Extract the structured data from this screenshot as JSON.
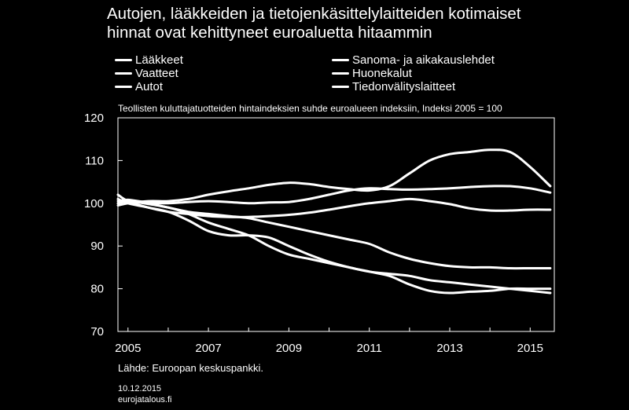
{
  "title_line1": "Autojen, lääkkeiden ja tietojenkäsittelylaitteiden kotimaiset",
  "title_line2": "hinnat ovat kehittyneet euroaluetta hitaammin",
  "subtitle": "Teollisten kuluttajatuotteiden hintaindeksien suhde euroalueen indeksiin, Indeksi 2005 = 100",
  "source": "Lähde: Euroopan keskuspankki.",
  "date": "10.12.2015",
  "site": "eurojatalous.fi",
  "colors": {
    "background": "#000000",
    "foreground": "#ffffff"
  },
  "chart_data": {
    "type": "line",
    "title": "Autojen, lääkkeiden ja tietojenkäsittelylaitteiden kotimaiset hinnat ovat kehittyneet euroaluetta hitaammin",
    "subtitle": "Teollisten kuluttajatuotteiden hintaindeksien suhde euroalueen indeksiin, Indeksi 2005 = 100",
    "xlabel": "",
    "ylabel": "",
    "xlim": [
      2004.75,
      2015.6
    ],
    "ylim": [
      70,
      120
    ],
    "yticks": [
      70,
      80,
      90,
      100,
      110,
      120
    ],
    "xticks": [
      2005,
      2007,
      2009,
      2011,
      2013,
      2015
    ],
    "xtick_labels": [
      "2005",
      "2007",
      "2009",
      "2011",
      "2013",
      "2015"
    ],
    "grid": false,
    "legend_position": "top",
    "series": [
      {
        "name": "Lääkkeet",
        "x": [
          2004.75,
          2005,
          2006,
          2006.5,
          2007,
          2007.5,
          2008,
          2008.5,
          2009,
          2009.5,
          2010,
          2010.5,
          2011,
          2011.5,
          2012,
          2012.5,
          2013,
          2013.5,
          2014,
          2014.5,
          2015,
          2015.5
        ],
        "y": [
          100,
          100.5,
          99.0,
          97.5,
          95.5,
          94.0,
          92.5,
          90.0,
          88.0,
          87.0,
          86.0,
          85.0,
          84.0,
          83.5,
          83.0,
          82.0,
          81.5,
          81.0,
          80.5,
          80.0,
          79.5,
          79.0
        ]
      },
      {
        "name": "Vaatteet",
        "x": [
          2004.75,
          2005,
          2005.5,
          2006,
          2006.5,
          2007,
          2007.5,
          2008,
          2008.5,
          2009,
          2009.5,
          2010,
          2010.5,
          2011,
          2011.5,
          2012,
          2012.5,
          2013,
          2013.5,
          2014,
          2014.5,
          2015,
          2015.5
        ],
        "y": [
          100.5,
          100.8,
          100.2,
          100.0,
          100.3,
          100.5,
          100.3,
          100.0,
          100.2,
          100.3,
          101.0,
          102.0,
          103.0,
          103.5,
          103.3,
          103.2,
          103.3,
          103.5,
          103.8,
          104.0,
          104.0,
          103.5,
          102.5
        ]
      },
      {
        "name": "Autot",
        "x": [
          2004.75,
          2005,
          2005.5,
          2006,
          2006.5,
          2007,
          2007.5,
          2008,
          2008.5,
          2009,
          2009.5,
          2010,
          2010.5,
          2011,
          2011.5,
          2012,
          2012.5,
          2013,
          2013.5,
          2014,
          2014.5,
          2015,
          2015.5
        ],
        "y": [
          102.0,
          100.5,
          99.0,
          98.0,
          97.5,
          97.0,
          96.8,
          96.8,
          97.0,
          97.3,
          97.8,
          98.5,
          99.3,
          100.0,
          100.5,
          101.0,
          100.5,
          99.8,
          98.8,
          98.3,
          98.3,
          98.5,
          98.5
        ]
      },
      {
        "name": "Sanoma- ja aikakauslehdet",
        "x": [
          2004.75,
          2005,
          2005.5,
          2006,
          2006.5,
          2007,
          2007.5,
          2008,
          2008.5,
          2009,
          2009.5,
          2010,
          2010.5,
          2011,
          2011.5,
          2012,
          2012.5,
          2013,
          2013.5,
          2014,
          2014.5,
          2015,
          2015.5
        ],
        "y": [
          99.5,
          100.0,
          100.5,
          100.5,
          101.0,
          102.0,
          102.8,
          103.5,
          104.3,
          104.8,
          104.5,
          103.8,
          103.3,
          103.0,
          104.0,
          107.0,
          110.0,
          111.5,
          112.0,
          112.5,
          112.0,
          108.5,
          104.0
        ]
      },
      {
        "name": "Huonekalut",
        "x": [
          2004.75,
          2005,
          2005.5,
          2006,
          2006.5,
          2007,
          2007.5,
          2008,
          2008.5,
          2009,
          2009.5,
          2010,
          2010.5,
          2011,
          2011.5,
          2012,
          2012.5,
          2013,
          2013.5,
          2014,
          2014.5,
          2015,
          2015.5
        ],
        "y": [
          100.0,
          100.5,
          100.0,
          99.0,
          98.0,
          97.5,
          97.0,
          96.5,
          95.5,
          94.5,
          93.5,
          92.5,
          91.5,
          90.5,
          88.5,
          87.0,
          86.0,
          85.3,
          85.0,
          85.0,
          84.8,
          84.8,
          84.8
        ]
      },
      {
        "name": "Tiedonvälityslaitteet",
        "x": [
          2004.75,
          2005,
          2005.5,
          2006,
          2006.5,
          2007,
          2007.5,
          2008,
          2008.5,
          2009,
          2009.5,
          2010,
          2010.5,
          2011,
          2011.5,
          2012,
          2012.5,
          2013,
          2013.5,
          2014,
          2014.5,
          2015,
          2015.5
        ],
        "y": [
          101.0,
          100.0,
          99.0,
          98.0,
          96.0,
          93.5,
          92.5,
          92.5,
          92.0,
          90.0,
          88.0,
          86.3,
          85.0,
          84.0,
          83.0,
          81.0,
          79.5,
          79.0,
          79.3,
          79.5,
          80.0,
          80.0,
          80.0
        ]
      }
    ]
  }
}
